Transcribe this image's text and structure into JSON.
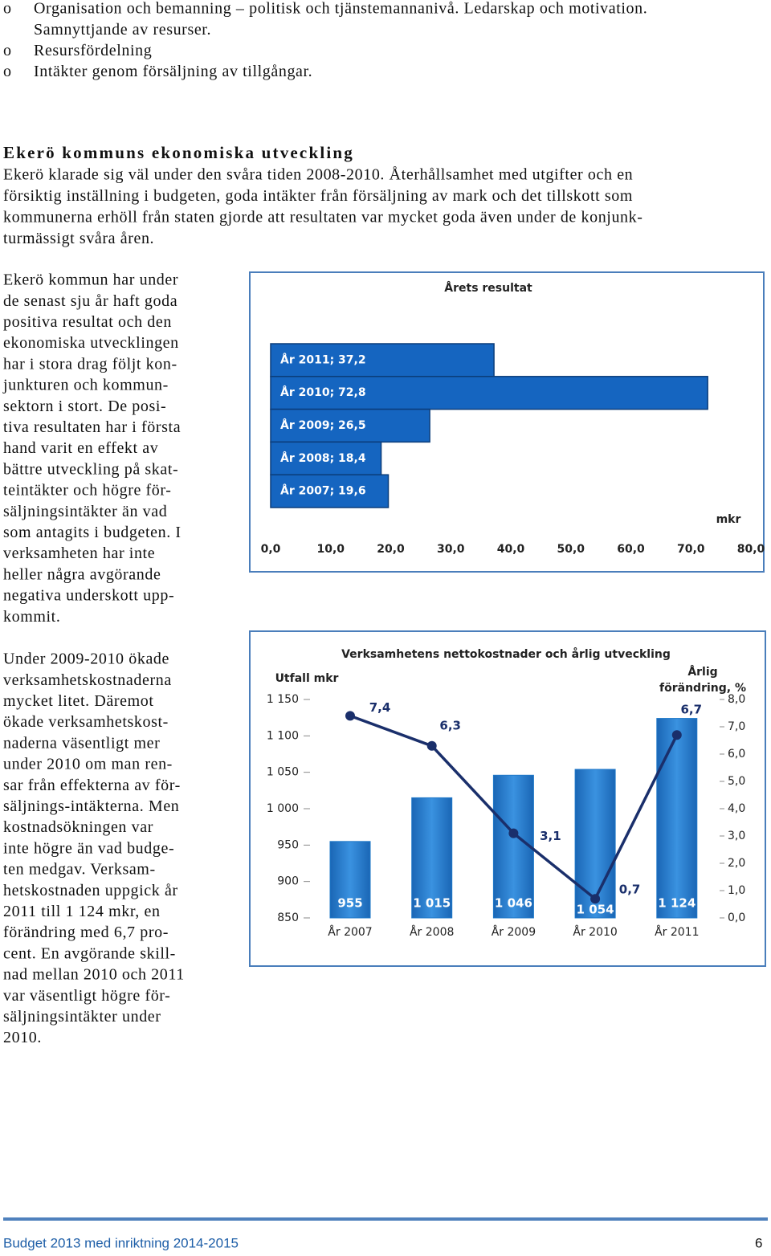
{
  "bullets": [
    {
      "marker": "o",
      "lines": [
        "Organisation och bemanning – politisk och tjänstemannanivå. Ledarskap och motivation.",
        "Samnyttjande av resurser."
      ]
    },
    {
      "marker": "o",
      "lines": [
        "Resursfördelning"
      ]
    },
    {
      "marker": "o",
      "lines": [
        "Intäkter genom försäljning av tillgångar."
      ]
    }
  ],
  "heading": "Ekerö kommuns ekonomiska utveckling",
  "intro": [
    "Ekerö klarade sig väl under den svåra tiden 2008-2010. Återhållsamhet med utgifter och en",
    "försiktig inställning i budgeten, goda intäkter från försäljning av mark och det tillskott som",
    "kommunerna erhöll från staten gjorde att resultaten var mycket goda även under de konjunk-",
    "turmässigt svåra åren."
  ],
  "left_text": [
    [
      "Ekerö kommun har under",
      "de senast sju år haft goda",
      "positiva resultat och den",
      "ekonomiska utvecklingen",
      "har i stora drag följt kon-",
      "junkturen och kommun-",
      "sektorn i stort. De posi-",
      "tiva resultaten har i första",
      "hand varit en effekt av",
      "bättre utveckling på skat-",
      "teintäkter och högre för-",
      "säljningsintäkter än vad",
      "som antagits i budgeten. I",
      "verksamheten har inte",
      "heller några avgörande",
      "negativa underskott upp-",
      "kommit."
    ],
    [
      "Under 2009-2010 ökade",
      "verksamhetskostnaderna",
      "mycket litet. Däremot",
      "ökade verksamhetskost-",
      "naderna väsentligt mer",
      "under 2010 om man ren-",
      "sar från effekterna av för-",
      "säljnings-intäkterna. Men",
      "kostnadsökningen var",
      "inte högre än vad budge-",
      "ten medgav. Verksam-",
      "hetskostnaden uppgick år",
      "2011 till 1 124 mkr, en",
      "förändring med 6,7 pro-",
      "cent. En avgörande skill-",
      "nad mellan 2010 och 2011",
      "var väsentligt högre för-",
      "säljningsintäkter under",
      "2010."
    ]
  ],
  "chart_data": [
    {
      "type": "hbar",
      "title": "Årets resultat",
      "values": [
        37.2,
        72.8,
        26.5,
        18.4,
        19.6
      ],
      "value_labels": [
        "År 2011; 37,2",
        "År 2010; 72,8",
        "År 2009; 26,5",
        "År 2008; 18,4",
        "År 2007; 19,6"
      ],
      "color": "#1565c0",
      "xlim": [
        0,
        80
      ],
      "xticks": [
        {
          "value": 0,
          "label": "0,0"
        },
        {
          "value": 10,
          "label": "10,0"
        },
        {
          "value": 20,
          "label": "20,0"
        },
        {
          "value": 30,
          "label": "30,0"
        },
        {
          "value": 40,
          "label": "40,0"
        },
        {
          "value": 50,
          "label": "50,0"
        },
        {
          "value": 60,
          "label": "60,0"
        },
        {
          "value": 70,
          "label": "70,0"
        },
        {
          "value": 80,
          "label": "80,0"
        }
      ],
      "xlabel": "mkr"
    },
    {
      "type": "bar_line",
      "title": "Verksamhetens nettokostnader och årlig utveckling",
      "ylabel": "Utfall mkr",
      "y2label": "Årlig förändring, %",
      "categories": [
        "År 2007",
        "År 2008",
        "År 2009",
        "År 2010",
        "År 2011"
      ],
      "series": [
        {
          "color": "#1f78c8",
          "values": [
            955,
            1015,
            1046,
            1054,
            1124
          ],
          "value_labels": [
            "955",
            "1 015",
            "1 046",
            "1 054",
            "1 124"
          ]
        },
        {
          "color": "#1a2f6b",
          "axis": "y2",
          "values": [
            7.4,
            6.3,
            3.1,
            0.7,
            6.7
          ],
          "value_labels": [
            "7,4",
            "6,3",
            "3,1",
            "0,7",
            "6,7"
          ]
        }
      ],
      "ylim": [
        850,
        1150
      ],
      "yticks": [
        850,
        900,
        950,
        {
          "value": 1000,
          "label": "1 000"
        },
        {
          "value": 1050,
          "label": "1 050"
        },
        {
          "value": 1100,
          "label": "1 100"
        },
        {
          "value": 1150,
          "label": "1 150"
        }
      ],
      "y2lim": [
        0,
        8
      ],
      "y2ticks": [
        {
          "value": 0,
          "label": "0,0"
        },
        {
          "value": 1,
          "label": "1,0"
        },
        {
          "value": 2,
          "label": "2,0"
        },
        {
          "value": 3,
          "label": "3,0"
        },
        {
          "value": 4,
          "label": "4,0"
        },
        {
          "value": 5,
          "label": "5,0"
        },
        {
          "value": 6,
          "label": "6,0"
        },
        {
          "value": 7,
          "label": "7,0"
        },
        {
          "value": 8,
          "label": "8,0"
        }
      ]
    }
  ],
  "footer": {
    "title": "Budget 2013 med inriktning 2014-2015",
    "page": 6
  }
}
